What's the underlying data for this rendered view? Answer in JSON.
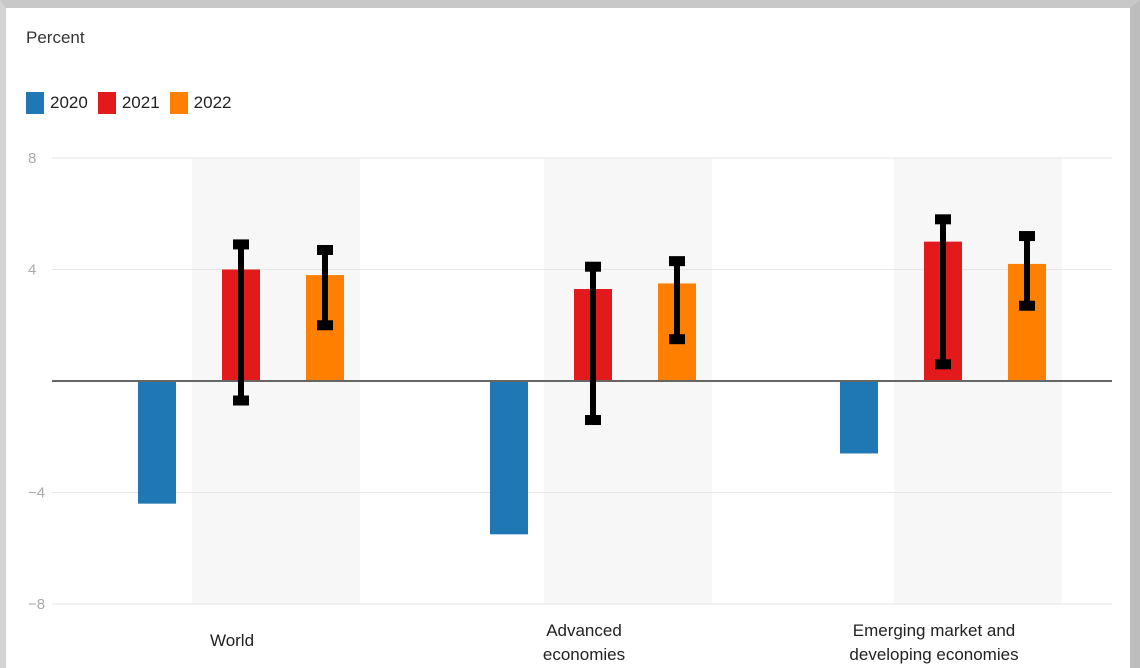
{
  "chart_data": {
    "type": "bar",
    "title": "",
    "ylabel": "Percent",
    "xlabel": "",
    "ylim": [
      -8,
      8
    ],
    "yticks": [
      {
        "value": 8,
        "label": "8"
      },
      {
        "value": 4,
        "label": "4"
      },
      {
        "value": -4,
        "label": "−4"
      },
      {
        "value": -8,
        "label": "−8"
      }
    ],
    "grid": true,
    "legend_position": "top-left",
    "categories": [
      {
        "lines": [
          "World"
        ]
      },
      {
        "lines": [
          "Advanced",
          "economies"
        ]
      },
      {
        "lines": [
          "Emerging market and",
          "developing economies"
        ]
      }
    ],
    "series": [
      {
        "name": "2020",
        "color": "#1f77b4",
        "values": [
          -4.4,
          -5.5,
          -2.6
        ],
        "error_low": null,
        "error_high": null
      },
      {
        "name": "2021",
        "color": "#e31a1c",
        "values": [
          4.0,
          3.3,
          5.0
        ],
        "error_low": [
          -0.7,
          -1.4,
          0.6
        ],
        "error_high": [
          4.9,
          4.1,
          5.8
        ]
      },
      {
        "name": "2022",
        "color": "#ff7f00",
        "values": [
          3.8,
          3.5,
          4.2
        ],
        "error_low": [
          2.0,
          1.5,
          2.7
        ],
        "error_high": [
          4.7,
          4.3,
          5.2
        ]
      }
    ],
    "error_bar_color": "#000000",
    "band_color": "#f7f7f7"
  }
}
